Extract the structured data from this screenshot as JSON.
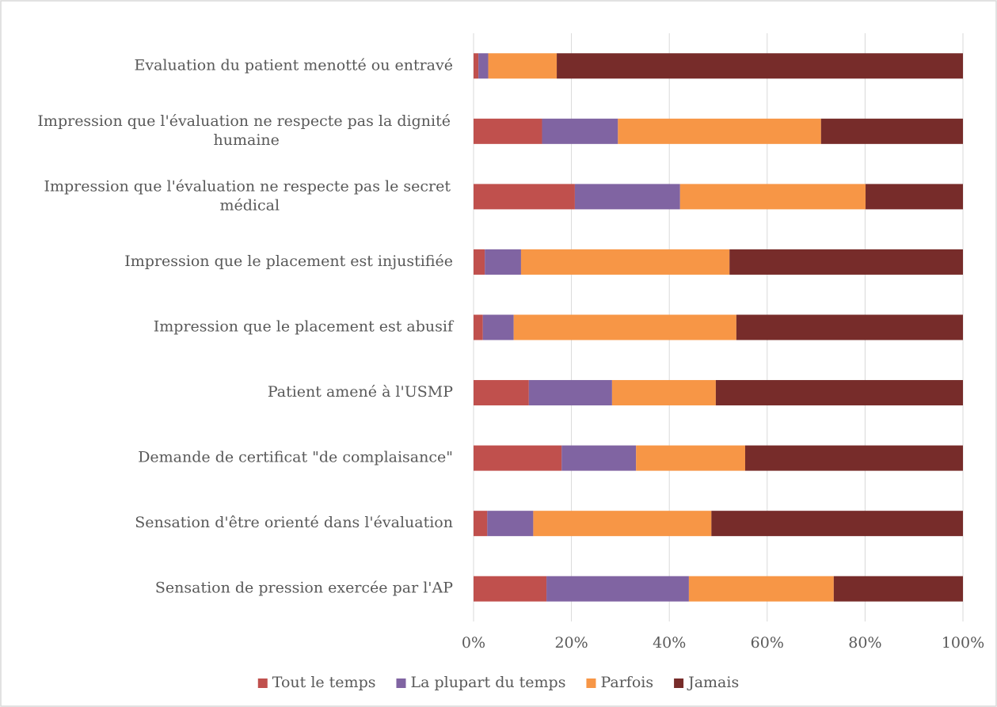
{
  "chart_data": {
    "type": "stacked_bar_horizontal",
    "categories": [
      "Evaluation du patient menotté ou entravé",
      "Impression que l'évaluation ne respecte pas la dignité humaine",
      "Impression que l'évaluation ne respecte pas le secret médical",
      "Impression que le placement est injustifiée",
      "Impression que le placement est abusif",
      "Patient amené à l'USMP",
      "Demande de certificat \"de complaisance\"",
      "Sensation d'être orienté dans l'évaluation",
      "Sensation de pression exercée par l'AP"
    ],
    "series": [
      {
        "name": "Tout le temps",
        "color": "#c0504d",
        "values": [
          1,
          14,
          20.7,
          2.3,
          1.9,
          11.3,
          18,
          2.8,
          14.9
        ]
      },
      {
        "name": "La plupart du temps",
        "color": "#8064a2",
        "values": [
          2,
          15.5,
          21.5,
          7.4,
          6.3,
          17,
          15.2,
          9.4,
          29.1
        ]
      },
      {
        "name": "Parfois",
        "color": "#f79646",
        "values": [
          14,
          41.5,
          37.9,
          42.6,
          45.5,
          21.2,
          22.3,
          36.4,
          29.6
        ]
      },
      {
        "name": "Jamais",
        "color": "#772c2a",
        "values": [
          83,
          29,
          19.9,
          47.7,
          46.3,
          50.5,
          44.5,
          51.4,
          26.4
        ]
      }
    ],
    "xlim": [
      0,
      100
    ],
    "xticks": [
      {
        "value": 0,
        "label": "0%"
      },
      {
        "value": 20,
        "label": "20%"
      },
      {
        "value": 40,
        "label": "40%"
      },
      {
        "value": 60,
        "label": "60%"
      },
      {
        "value": 80,
        "label": "80%"
      },
      {
        "value": 100,
        "label": "100%"
      }
    ],
    "grid": true,
    "legend": "bottom"
  }
}
